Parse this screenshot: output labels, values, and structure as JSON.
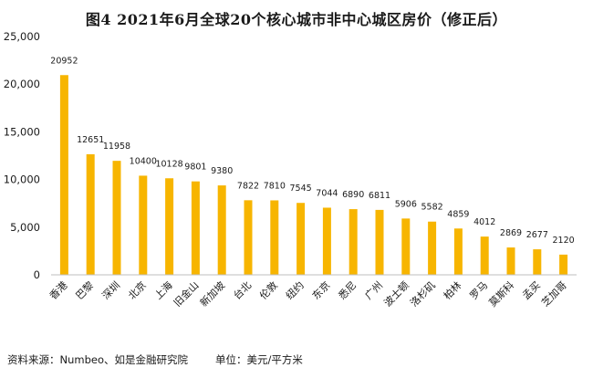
{
  "chart_data": {
    "type": "bar",
    "title": "图4 2021年6月全球20个核心城市非中心城区房价（修正后）",
    "categories": [
      "香港",
      "巴黎",
      "深圳",
      "北京",
      "上海",
      "旧金山",
      "新加坡",
      "台北",
      "伦敦",
      "纽约",
      "东京",
      "悉尼",
      "广州",
      "波士顿",
      "洛杉矶",
      "柏林",
      "罗马",
      "莫斯科",
      "孟买",
      "芝加哥"
    ],
    "values": [
      20952,
      12651,
      11958,
      10400,
      10128,
      9801,
      9380,
      7822,
      7810,
      7545,
      7044,
      6890,
      6811,
      5906,
      5582,
      4859,
      4012,
      2869,
      2677,
      2120
    ],
    "ylim": [
      0,
      25000
    ],
    "yticks": [
      "0",
      "5,000",
      "10,000",
      "15,000",
      "20,000",
      "25,000"
    ],
    "grid": false,
    "bar_color": "#F7B500",
    "legend": "none"
  },
  "footer": {
    "source": "资料来源：Numbeo、如是金融研究院",
    "unit": "单位：美元/平方米"
  }
}
